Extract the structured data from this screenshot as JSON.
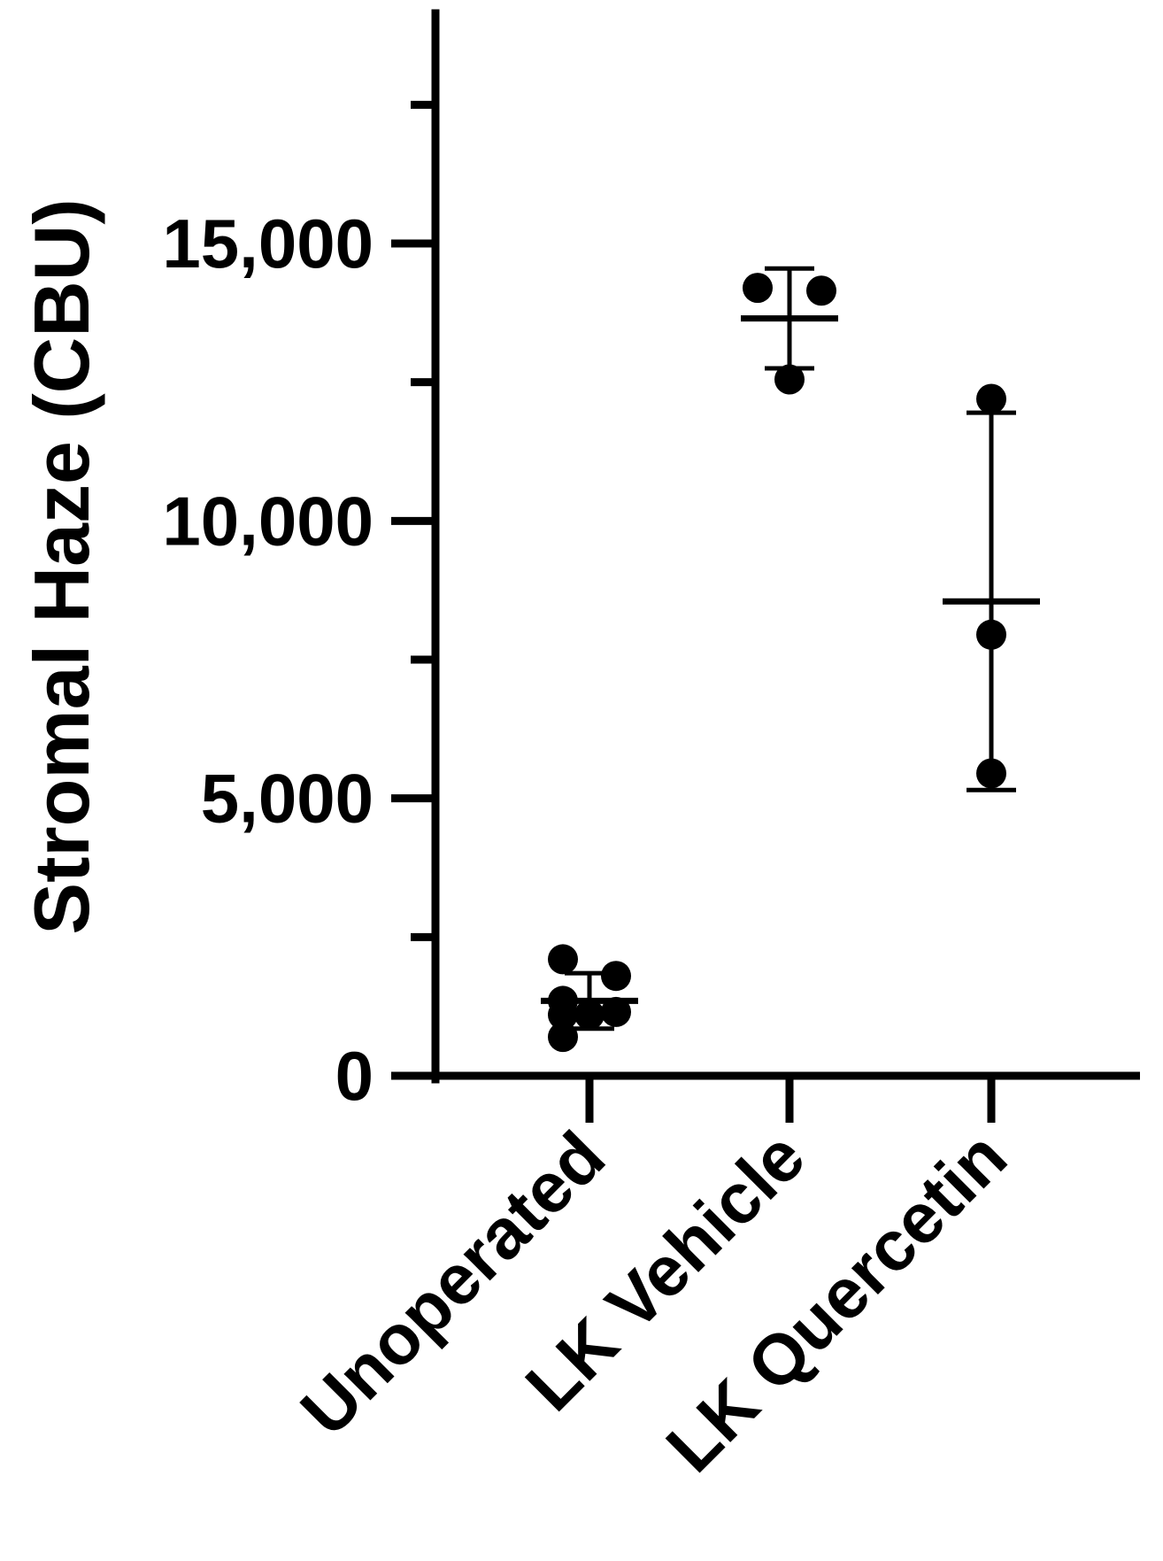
{
  "chart_data": {
    "type": "scatter",
    "ylabel": "Stromal Haze (CBU)",
    "xlabel": "",
    "categories": [
      "Unoperated",
      "LK Vehicle",
      "LK Quercetin"
    ],
    "ylim": [
      0,
      18500
    ],
    "y_ticks_labeled": [
      {
        "value": 0,
        "label": "0"
      },
      {
        "value": 5000,
        "label": "5,000"
      },
      {
        "value": 10000,
        "label": "10,000"
      },
      {
        "value": 15000,
        "label": "15,000"
      }
    ],
    "y_ticks_minor": [
      2500,
      7500,
      12500,
      17500
    ],
    "groups": [
      {
        "name": "Unoperated",
        "points": [
          2100,
          1800,
          1350,
          1150,
          1100,
          1100,
          700
        ],
        "mean": 1350,
        "error_upper": 1850,
        "error_lower": 850
      },
      {
        "name": "LK Vehicle",
        "points": [
          14200,
          14150,
          12550
        ],
        "mean": 13650,
        "error_upper": 14550,
        "error_lower": 12750
      },
      {
        "name": "LK Quercetin",
        "points": [
          12200,
          7950,
          5450
        ],
        "mean": 8550,
        "error_upper": 11950,
        "error_lower": 5150
      }
    ],
    "colors": {
      "axis": "#000000",
      "points": "#000000",
      "background": "#ffffff"
    },
    "grid": false,
    "legend": "none"
  }
}
